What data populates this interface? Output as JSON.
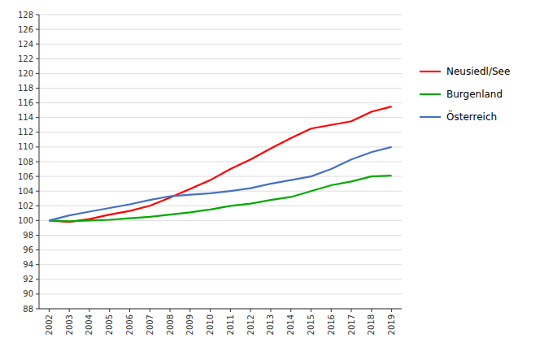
{
  "chart_data": {
    "type": "line",
    "x": [
      2002,
      2003,
      2004,
      2005,
      2006,
      2007,
      2008,
      2009,
      2010,
      2011,
      2012,
      2013,
      2014,
      2015,
      2016,
      2017,
      2018,
      2019
    ],
    "series": [
      {
        "name": "Neusiedl/See",
        "color": "#ff0000",
        "values": [
          100.0,
          99.8,
          100.2,
          100.8,
          101.3,
          102.0,
          103.1,
          104.3,
          105.5,
          107.0,
          108.3,
          109.8,
          111.2,
          112.5,
          113.0,
          113.5,
          114.8,
          115.5
        ]
      },
      {
        "name": "Burgenland",
        "color": "#00aa00",
        "values": [
          100.0,
          99.9,
          100.0,
          100.1,
          100.3,
          100.5,
          100.8,
          101.1,
          101.5,
          102.0,
          102.3,
          102.8,
          103.2,
          104.0,
          104.8,
          105.3,
          106.0,
          106.1
        ]
      },
      {
        "name": "Österreich",
        "color": "#4472c4",
        "values": [
          100.0,
          100.7,
          101.2,
          101.7,
          102.2,
          102.8,
          103.3,
          103.5,
          103.7,
          104.0,
          104.4,
          105.0,
          105.5,
          106.0,
          107.0,
          108.3,
          109.3,
          110.0
        ]
      }
    ],
    "xlim": [
      2001.5,
      2019.5
    ],
    "xticks": [
      2002,
      2003,
      2004,
      2005,
      2006,
      2007,
      2008,
      2009,
      2010,
      2011,
      2012,
      2013,
      2014,
      2015,
      2016,
      2017,
      2018,
      2019
    ],
    "ylim": [
      88,
      128
    ],
    "yticks": [
      88,
      90,
      92,
      94,
      96,
      98,
      100,
      102,
      104,
      106,
      108,
      110,
      112,
      114,
      116,
      118,
      120,
      122,
      124,
      126,
      128
    ],
    "grid": true,
    "legend": "right"
  }
}
